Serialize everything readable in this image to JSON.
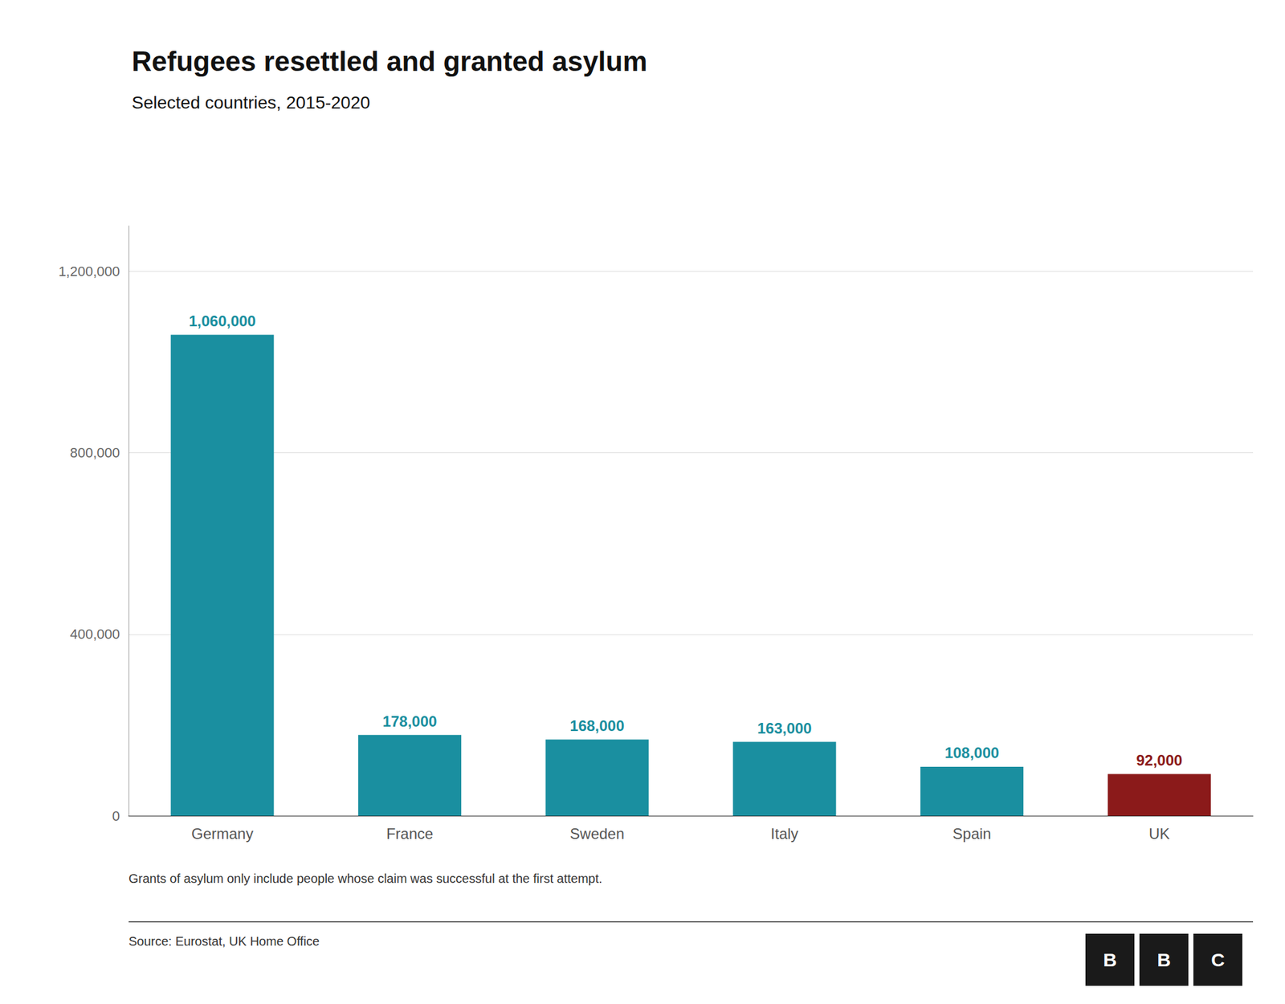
{
  "chart_data": {
    "type": "bar",
    "title": "Refugees resettled and granted asylum",
    "subtitle": "Selected countries, 2015-2020",
    "categories": [
      "Germany",
      "France",
      "Sweden",
      "Italy",
      "Spain",
      "UK"
    ],
    "values": [
      1060000,
      178000,
      168000,
      163000,
      108000,
      92000
    ],
    "value_labels": [
      "1,060,000",
      "178,000",
      "168,000",
      "163,000",
      "108,000",
      "92,000"
    ],
    "colors": [
      "#1a8fa0",
      "#1a8fa0",
      "#1a8fa0",
      "#1a8fa0",
      "#1a8fa0",
      "#8b1a1a"
    ],
    "ylim": [
      0,
      1300000
    ],
    "yticks": [
      0,
      {
        "value": 400000,
        "label": "400,000"
      },
      {
        "value": 800000,
        "label": "800,000"
      },
      {
        "value": 1200000,
        "label": "1,200,000"
      }
    ],
    "grid": true,
    "data_labels": true,
    "footnote": "Grants of asylum only include people whose claim was successful at the first attempt.",
    "source": "Source: Eurostat, UK Home Office",
    "logo": [
      "B",
      "B",
      "C"
    ]
  }
}
